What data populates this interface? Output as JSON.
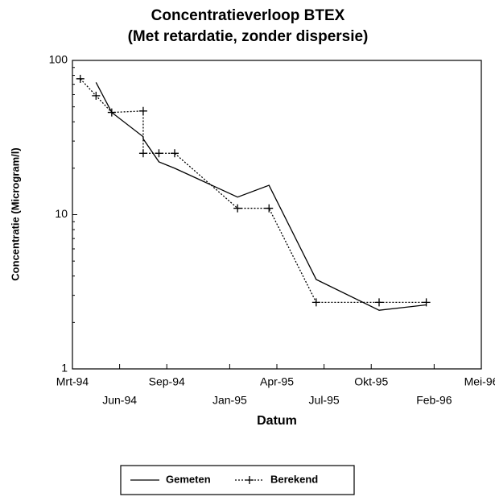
{
  "chart_data": {
    "type": "line",
    "title": "Concentratieverloop BTEX",
    "subtitle": "(Met retardatie, zonder dispersie)",
    "x_label": "Datum",
    "y_label": "Concentratie (Microgram/l)",
    "xlim": [
      "1994-03",
      "1996-05"
    ],
    "xticks": [
      {
        "value": "1994-03",
        "label": "Mrt-94"
      },
      {
        "value": "1994-06",
        "label": "Jun-94"
      },
      {
        "value": "1994-09",
        "label": "Sep-94"
      },
      {
        "value": "1995-01",
        "label": "Jan-95"
      },
      {
        "value": "1995-04",
        "label": "Apr-95"
      },
      {
        "value": "1995-07",
        "label": "Jul-95"
      },
      {
        "value": "1995-10",
        "label": "Okt-95"
      },
      {
        "value": "1996-02",
        "label": "Feb-96"
      },
      {
        "value": "1996-05",
        "label": "Mei-96"
      }
    ],
    "ylim": [
      1,
      100
    ],
    "yticks": [
      1,
      10,
      100
    ],
    "log_scale": true,
    "grid": false,
    "legend": "bottom",
    "series": [
      {
        "name": "Gemeten",
        "color": "#000000",
        "line_style": "solid",
        "marker": "none",
        "x": [
          "1994-04",
          "1994-05",
          "1994-07",
          "1994-07",
          "1994-08",
          "1994-09",
          "1995-01",
          "1995-03",
          "1995-06",
          "1995-10",
          "1996-01"
        ],
        "values": [
          72,
          46,
          32,
          31,
          22,
          20,
          13,
          15.5,
          3.8,
          2.4,
          2.6
        ]
      },
      {
        "name": "Berekend",
        "color": "#000000",
        "line_style": "dotted",
        "marker": "plus",
        "x": [
          "1994-03",
          "1994-04",
          "1994-05",
          "1994-07",
          "1994-07",
          "1994-08",
          "1994-09",
          "1995-01",
          "1995-03",
          "1995-06",
          "1995-10",
          "1996-01"
        ],
        "values": [
          76,
          59,
          46,
          47,
          25,
          25,
          25,
          11,
          11,
          2.7,
          2.7,
          2.7
        ]
      }
    ]
  }
}
